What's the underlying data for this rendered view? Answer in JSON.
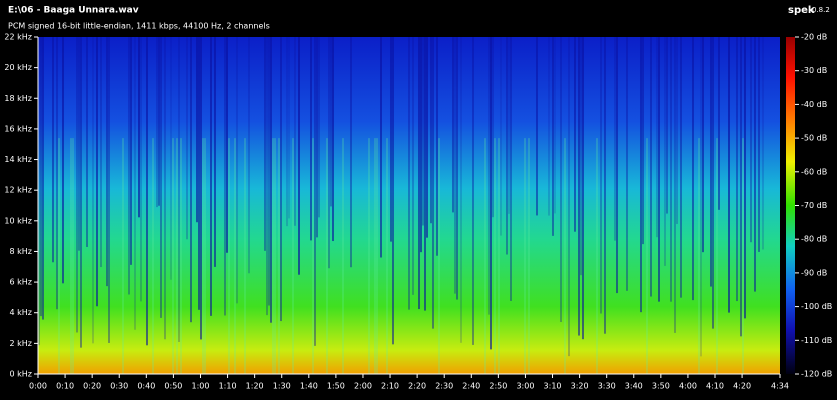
{
  "header": {
    "title": "E:\\06 - Baaga Unnara.wav",
    "subtitle": "PCM signed 16-bit little-endian, 1411 kbps, 44100 Hz, 2 channels",
    "app": "spek",
    "version": "0.8.2"
  },
  "chart_data": {
    "type": "spectrogram",
    "xlim": [
      0,
      274
    ],
    "xticks": [
      {
        "value": 0,
        "label": "0:00"
      },
      {
        "value": 10,
        "label": "0:10"
      },
      {
        "value": 20,
        "label": "0:20"
      },
      {
        "value": 30,
        "label": "0:30"
      },
      {
        "value": 40,
        "label": "0:40"
      },
      {
        "value": 50,
        "label": "0:50"
      },
      {
        "value": 60,
        "label": "1:00"
      },
      {
        "value": 70,
        "label": "1:10"
      },
      {
        "value": 80,
        "label": "1:20"
      },
      {
        "value": 90,
        "label": "1:30"
      },
      {
        "value": 100,
        "label": "1:40"
      },
      {
        "value": 110,
        "label": "1:50"
      },
      {
        "value": 120,
        "label": "2:00"
      },
      {
        "value": 130,
        "label": "2:10"
      },
      {
        "value": 140,
        "label": "2:20"
      },
      {
        "value": 150,
        "label": "2:30"
      },
      {
        "value": 160,
        "label": "2:40"
      },
      {
        "value": 170,
        "label": "2:50"
      },
      {
        "value": 180,
        "label": "3:00"
      },
      {
        "value": 190,
        "label": "3:10"
      },
      {
        "value": 200,
        "label": "3:20"
      },
      {
        "value": 210,
        "label": "3:30"
      },
      {
        "value": 220,
        "label": "3:40"
      },
      {
        "value": 230,
        "label": "3:50"
      },
      {
        "value": 240,
        "label": "4:00"
      },
      {
        "value": 250,
        "label": "4:10"
      },
      {
        "value": 260,
        "label": "4:20"
      },
      {
        "value": 274,
        "label": "4:34"
      }
    ],
    "ylim": [
      0,
      22
    ],
    "yticks": [
      {
        "value": 0,
        "label": "0 kHz"
      },
      {
        "value": 2,
        "label": "2 kHz"
      },
      {
        "value": 4,
        "label": "4 kHz"
      },
      {
        "value": 6,
        "label": "6 kHz"
      },
      {
        "value": 8,
        "label": "8 kHz"
      },
      {
        "value": 10,
        "label": "10 kHz"
      },
      {
        "value": 12,
        "label": "12 kHz"
      },
      {
        "value": 14,
        "label": "14 kHz"
      },
      {
        "value": 16,
        "label": "16 kHz"
      },
      {
        "value": 18,
        "label": "18 kHz"
      },
      {
        "value": 20,
        "label": "20 kHz"
      },
      {
        "value": 22,
        "label": "22 kHz"
      }
    ],
    "zlim": [
      -120,
      -20
    ],
    "zticks": [
      {
        "value": -20,
        "label": "-20 dB"
      },
      {
        "value": -30,
        "label": "-30 dB"
      },
      {
        "value": -40,
        "label": "-40 dB"
      },
      {
        "value": -50,
        "label": "-50 dB"
      },
      {
        "value": -60,
        "label": "-60 dB"
      },
      {
        "value": -70,
        "label": "-70 dB"
      },
      {
        "value": -80,
        "label": "-80 dB"
      },
      {
        "value": -90,
        "label": "-90 dB"
      },
      {
        "value": -100,
        "label": "-100 dB"
      },
      {
        "value": -110,
        "label": "-110 dB"
      },
      {
        "value": -120,
        "label": "-120 dB"
      }
    ]
  }
}
